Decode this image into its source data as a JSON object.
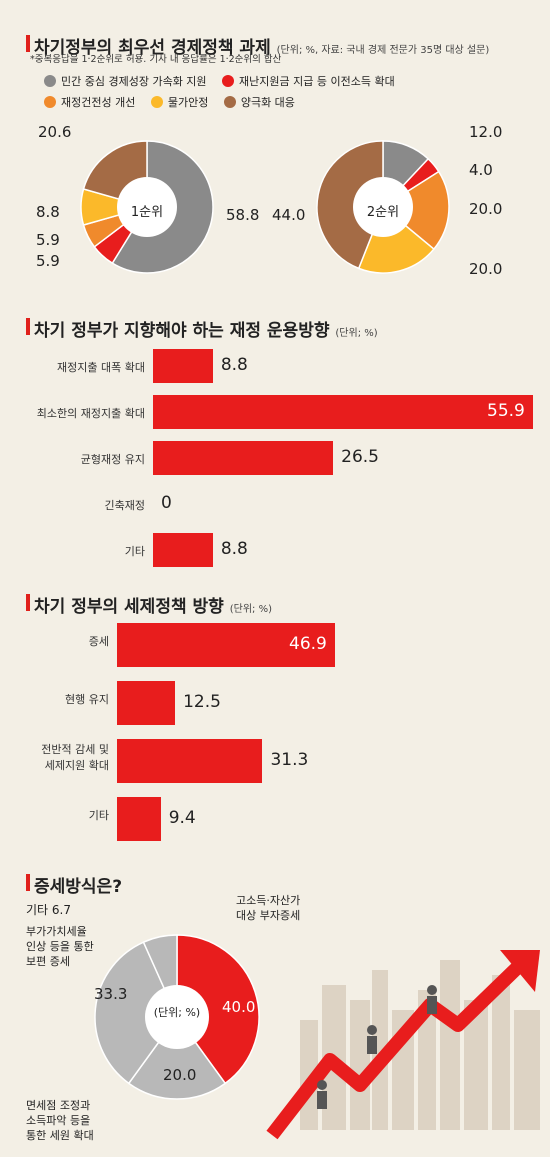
{
  "section1": {
    "title": "차기정부의 최우선 경제정책 과제",
    "unit": "(단위; %, 자료: 국내 경제 전문가 35명 대상 설문)",
    "note": "*중복응답을 1·2순위로 허용. 기사 내 응답률은 1·2순위의 합산",
    "legend": [
      {
        "label": "민간 중심 경제성장 가속화 지원",
        "color": "#8a8a8a"
      },
      {
        "label": "재난지원금 지급 등 이전소득 확대",
        "color": "#e81d1d"
      },
      {
        "label": "재정건전성 개선",
        "color": "#f08a2c"
      },
      {
        "label": "물가안정",
        "color": "#fbb92a"
      },
      {
        "label": "양극화 대응",
        "color": "#a46b45"
      }
    ]
  },
  "section2": {
    "title": "차기 정부가 지향해야 하는 재정 운용방향",
    "unit": "(단위; %)"
  },
  "section3": {
    "title": "차기 정부의 세제정책 방향",
    "unit": "(단위; %)"
  },
  "section4": {
    "title": "증세방식은?",
    "center": "(단위; %)",
    "labels": {
      "other": "기타 6.7",
      "vat_l1": "부가가치세율",
      "vat_l2": "인상 등을 통한",
      "vat_l3": "보편 증세",
      "rich_l1": "고소득·자산가",
      "rich_l2": "대상 부자증세",
      "exempt_l1": "면세점 조정과",
      "exempt_l2": "소득파악 등을",
      "exempt_l3": "통한 세원 확대"
    }
  },
  "chart_data": [
    {
      "type": "pie",
      "title": "1순위",
      "categories": [
        "민간 중심 경제성장 가속화 지원",
        "재난지원금 지급 등 이전소득 확대",
        "재정건전성 개선",
        "물가안정",
        "양극화 대응"
      ],
      "values": [
        58.8,
        5.9,
        5.9,
        8.8,
        20.6
      ],
      "value_labels": [
        "58.8",
        "5.9",
        "5.9",
        "8.8",
        "20.6"
      ],
      "colors": [
        "#8a8a8a",
        "#e81d1d",
        "#f08a2c",
        "#fbb92a",
        "#a46b45"
      ]
    },
    {
      "type": "pie",
      "title": "2순위",
      "categories": [
        "민간 중심 경제성장 가속화 지원",
        "재난지원금 지급 등 이전소득 확대",
        "재정건전성 개선",
        "물가안정",
        "양극화 대응"
      ],
      "values": [
        12.0,
        4.0,
        20.0,
        20.0,
        44.0
      ],
      "value_labels": [
        "12.0",
        "4.0",
        "20.0",
        "20.0",
        "44.0"
      ],
      "colors": [
        "#8a8a8a",
        "#e81d1d",
        "#f08a2c",
        "#fbb92a",
        "#a46b45"
      ]
    },
    {
      "type": "bar",
      "title": "차기 정부가 지향해야 하는 재정 운용방향",
      "categories": [
        "재정지출 대폭 확대",
        "최소한의 재정지출 확대",
        "균형재정 유지",
        "긴축재정",
        "기타"
      ],
      "values": [
        8.8,
        55.9,
        26.5,
        0,
        8.8
      ],
      "value_labels": [
        "8.8",
        "55.9",
        "26.5",
        "0",
        "8.8"
      ],
      "xlim": [
        0,
        55.9
      ]
    },
    {
      "type": "bar",
      "title": "차기 정부의 세제정책 방향",
      "categories": [
        "증세",
        "현행 유지",
        "전반적 감세 및|세제지원 확대",
        "기타"
      ],
      "values": [
        46.9,
        12.5,
        31.3,
        9.4
      ],
      "value_labels": [
        "46.9",
        "12.5",
        "31.3",
        "9.4"
      ],
      "xlim": [
        0,
        46.9
      ]
    },
    {
      "type": "pie",
      "title": "증세방식은?",
      "categories": [
        "고소득·자산가 대상 부자증세",
        "면세점 조정과 소득파악 등을 통한 세원 확대",
        "부가가치세율 인상 등을 통한 보편 증세",
        "기타"
      ],
      "values": [
        40.0,
        20.0,
        33.3,
        6.7
      ],
      "value_labels": [
        "40.0",
        "20.0",
        "33.3",
        "6.7"
      ],
      "colors": [
        "#e81d1d",
        "#b8b8b8",
        "#b8b8b8",
        "#b8b8b8"
      ]
    }
  ]
}
